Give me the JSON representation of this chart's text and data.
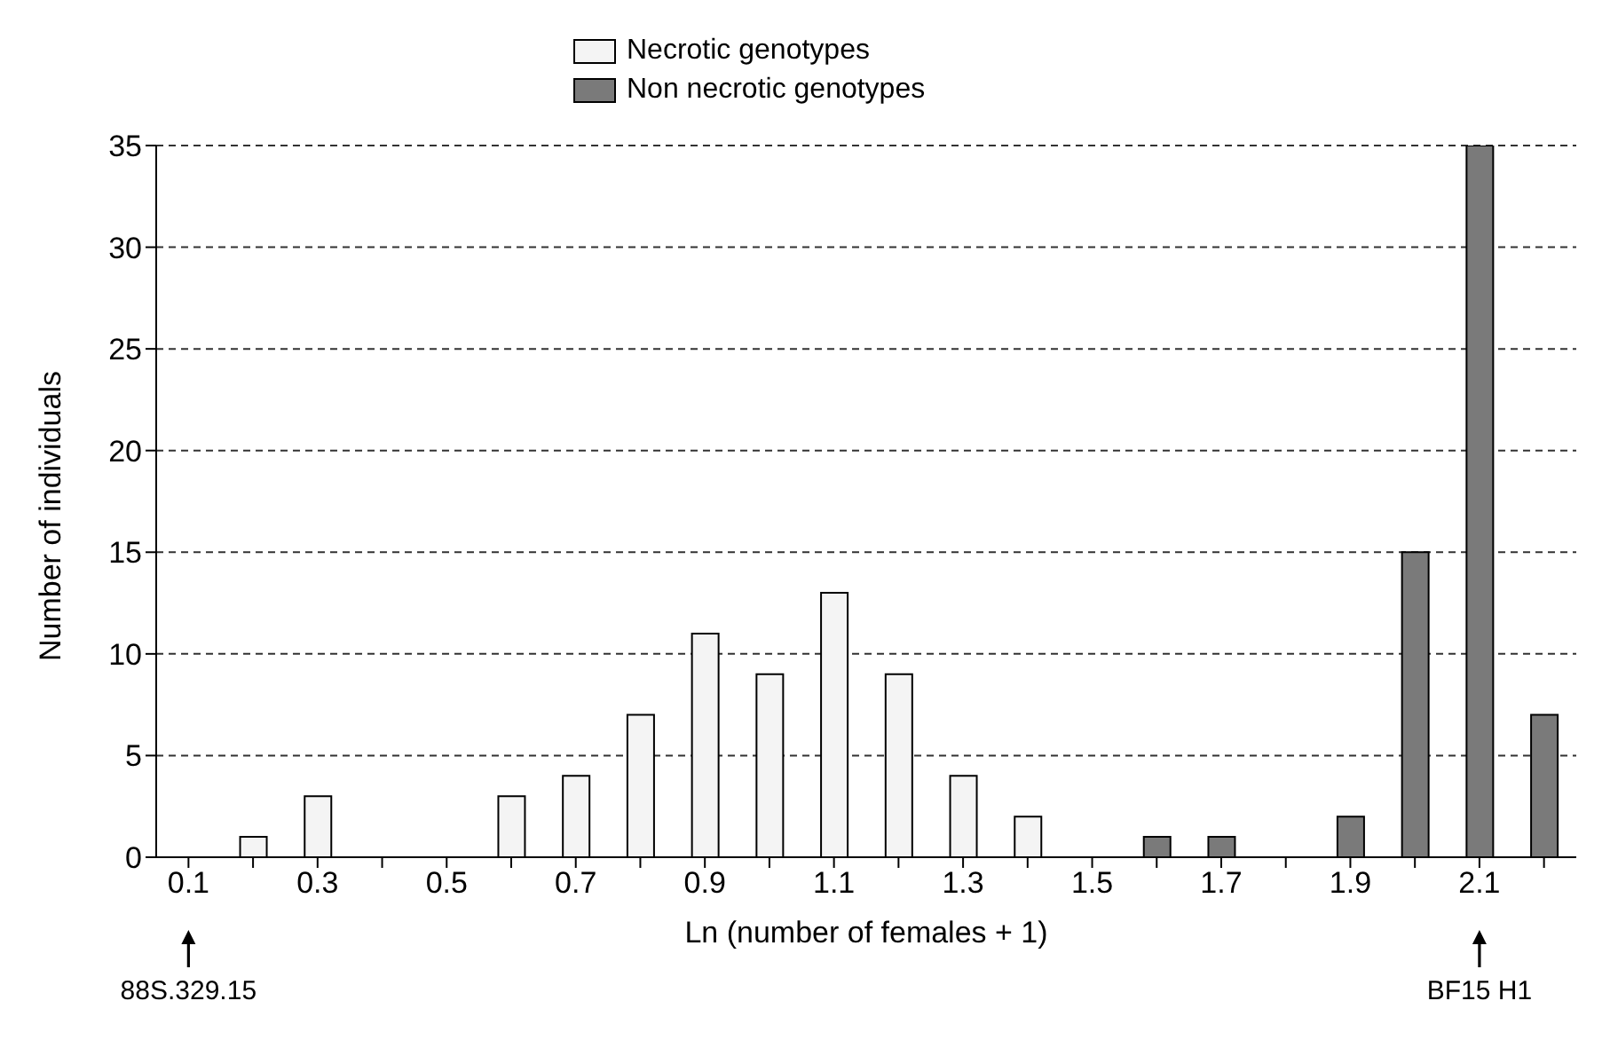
{
  "chart_data": {
    "type": "bar",
    "xlabel": "Ln (number of females + 1)",
    "ylabel": "Number of individuals",
    "categories": [
      "0.1",
      null,
      "0.3",
      null,
      "0.5",
      null,
      "0.7",
      null,
      "0.9",
      null,
      "1.1",
      null,
      "1.3",
      null,
      "1.5",
      null,
      "1.7",
      null,
      "1.9",
      null,
      "2.1",
      null
    ],
    "series": [
      {
        "name": "Necrotic genotypes",
        "color": "#f4f4f4",
        "values": [
          0,
          1,
          3,
          0,
          0,
          3,
          4,
          7,
          11,
          9,
          13,
          9,
          4,
          2,
          0,
          null,
          null,
          null,
          null,
          null,
          null,
          null
        ]
      },
      {
        "name": "Non necrotic genotypes",
        "color": "#7a7a7a",
        "values": [
          null,
          null,
          null,
          null,
          null,
          null,
          null,
          null,
          null,
          null,
          null,
          null,
          null,
          null,
          null,
          1,
          1,
          0,
          2,
          15,
          35,
          7
        ]
      }
    ],
    "ylim": [
      0,
      35
    ],
    "yticks": [
      0,
      5,
      10,
      15,
      20,
      25,
      30,
      35
    ],
    "grid": "y",
    "legend": "top",
    "annotations": [
      "88S.329.15",
      "BF15 H1"
    ]
  }
}
